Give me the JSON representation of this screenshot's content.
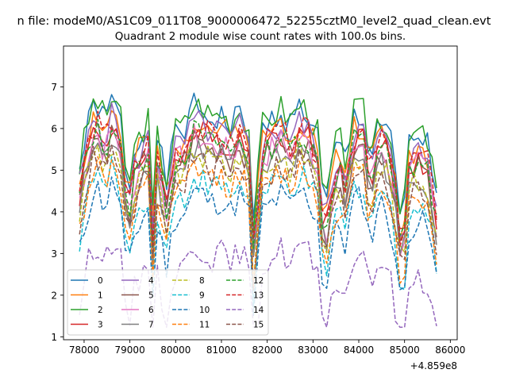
{
  "figure": {
    "suptitle": "n file: modeM0/AS1C09_011T08_9000006472_52255cztM0_level2_quad_clean.evt",
    "title": "Quadrant 2 module wise count rates with 100.0s bins.",
    "x_offset_label": "+4.859e8"
  },
  "chart_data": {
    "type": "line",
    "title": "Quadrant 2 module wise count rates with 100.0s bins.",
    "xlabel": "",
    "ylabel": "",
    "x_offset": 485900000,
    "xlim": [
      77550,
      86150
    ],
    "ylim": [
      0.93,
      7.98
    ],
    "xticks": [
      78000,
      79000,
      80000,
      81000,
      82000,
      83000,
      84000,
      85000,
      86000
    ],
    "xtick_labels": [
      "78000",
      "79000",
      "80000",
      "81000",
      "82000",
      "83000",
      "84000",
      "85000",
      "86000"
    ],
    "yticks": [
      1,
      2,
      3,
      4,
      5,
      6,
      7
    ],
    "ytick_labels": [
      "1",
      "2",
      "3",
      "4",
      "5",
      "6",
      "7"
    ],
    "x_start": 77900,
    "x_step": 100,
    "grid": false,
    "legend": {
      "placement": "lower-left",
      "ncol": 4
    },
    "anchors_x": [
      77900,
      78050,
      78250,
      78450,
      78650,
      78800,
      78950,
      79050,
      79250,
      79400,
      79500,
      79600,
      79800,
      80000,
      80200,
      80400,
      80600,
      80800,
      81000,
      81200,
      81400,
      81600,
      81700,
      81900,
      82100,
      82300,
      82500,
      82700,
      82900,
      83100,
      83250,
      83350,
      83550,
      83700,
      83900,
      84100,
      84250,
      84400,
      84550,
      84750,
      84950,
      85100,
      85300,
      85500,
      85750
    ],
    "anchors_y": [
      5.0,
      5.9,
      6.7,
      6.1,
      6.8,
      6.1,
      4.2,
      5.3,
      5.8,
      6.1,
      3.9,
      5.7,
      4.7,
      5.9,
      6.0,
      6.5,
      6.4,
      6.2,
      6.3,
      6.0,
      6.4,
      5.9,
      3.6,
      6.0,
      6.2,
      6.4,
      6.1,
      6.5,
      6.3,
      5.8,
      3.8,
      4.7,
      5.8,
      5.2,
      6.3,
      6.3,
      5.2,
      6.1,
      6.2,
      5.4,
      3.4,
      5.6,
      5.8,
      5.6,
      4.1
    ],
    "series": [
      {
        "name": "0",
        "color": "#1f77b4",
        "dash": "solid",
        "offset": 0.0,
        "seed": 1
      },
      {
        "name": "1",
        "color": "#ff7f0e",
        "dash": "solid",
        "offset": -0.25,
        "seed": 2
      },
      {
        "name": "2",
        "color": "#2ca02c",
        "dash": "solid",
        "offset": 0.1,
        "seed": 3
      },
      {
        "name": "3",
        "color": "#d62728",
        "dash": "solid",
        "offset": -0.55,
        "seed": 4
      },
      {
        "name": "4",
        "color": "#9467bd",
        "dash": "solid",
        "offset": -0.35,
        "seed": 5
      },
      {
        "name": "5",
        "color": "#8c564b",
        "dash": "solid",
        "offset": -0.75,
        "seed": 6
      },
      {
        "name": "6",
        "color": "#e377c2",
        "dash": "solid",
        "offset": -0.7,
        "seed": 7
      },
      {
        "name": "7",
        "color": "#7f7f7f",
        "dash": "solid",
        "offset": -0.95,
        "seed": 8
      },
      {
        "name": "8",
        "color": "#bcbd22",
        "dash": "dashed",
        "offset": -1.05,
        "seed": 9
      },
      {
        "name": "9",
        "color": "#17becf",
        "dash": "dashed",
        "offset": -1.65,
        "seed": 10
      },
      {
        "name": "10",
        "color": "#1f77b4",
        "dash": "dashed",
        "offset": -2.0,
        "seed": 11
      },
      {
        "name": "11",
        "color": "#ff7f0e",
        "dash": "dashed",
        "offset": -1.45,
        "seed": 12
      },
      {
        "name": "12",
        "color": "#2ca02c",
        "dash": "dashed",
        "offset": -0.6,
        "seed": 13
      },
      {
        "name": "13",
        "color": "#d62728",
        "dash": "dashed",
        "offset": -0.45,
        "seed": 14
      },
      {
        "name": "14",
        "color": "#9467bd",
        "dash": "dashed",
        "offset": -3.3,
        "seed": 15
      },
      {
        "name": "15",
        "color": "#8c564b",
        "dash": "dashed",
        "offset": -1.25,
        "seed": 16
      }
    ]
  }
}
